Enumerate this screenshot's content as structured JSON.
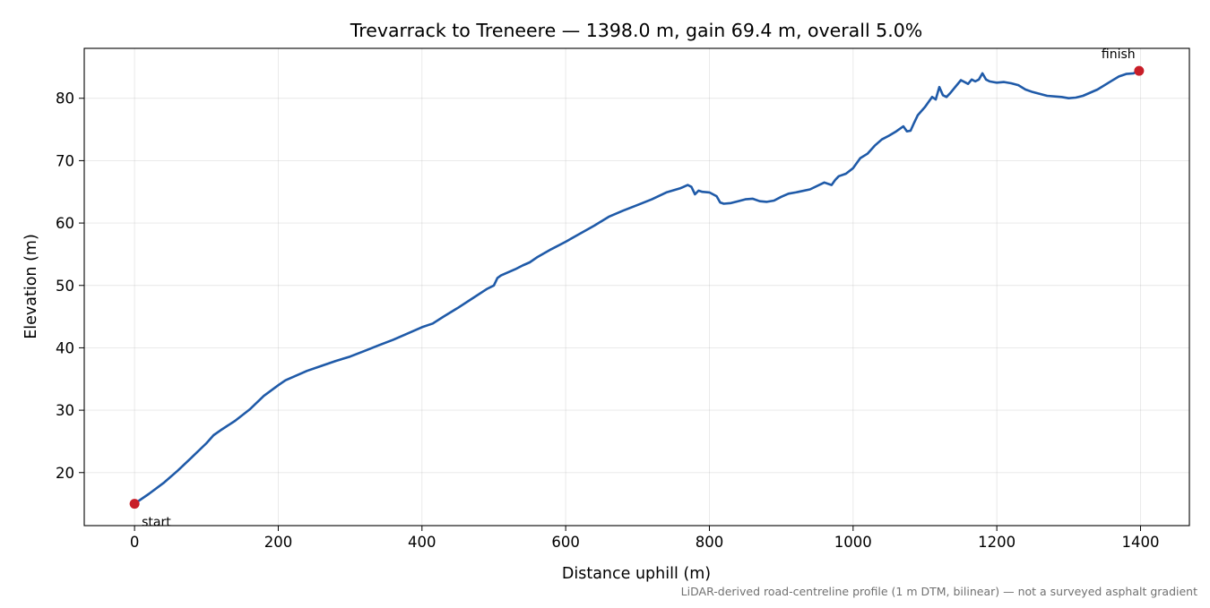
{
  "chart_data": {
    "type": "line",
    "title": "Trevarrack to Treneere — 1398.0 m, gain 69.4 m, overall 5.0%",
    "xlabel": "Distance uphill (m)",
    "ylabel": "Elevation (m)",
    "xlim": [
      -70,
      1468
    ],
    "ylim": [
      11.5,
      88
    ],
    "x_ticks": [
      0,
      200,
      400,
      600,
      800,
      1000,
      1200,
      1400
    ],
    "y_ticks": [
      20,
      30,
      40,
      50,
      60,
      70,
      80
    ],
    "x_tick_labels": [
      "0",
      "200",
      "400",
      "600",
      "800",
      "1000",
      "1200",
      "1400"
    ],
    "y_tick_labels": [
      "20",
      "30",
      "40",
      "50",
      "60",
      "70",
      "80"
    ],
    "grid": true,
    "series": [
      {
        "color": "#1f5aa8",
        "x": [
          0,
          20,
          40,
          60,
          80,
          100,
          110,
          120,
          140,
          160,
          180,
          200,
          210,
          220,
          240,
          260,
          280,
          300,
          320,
          340,
          360,
          380,
          400,
          415,
          430,
          450,
          470,
          490,
          500,
          505,
          510,
          520,
          530,
          540,
          550,
          560,
          580,
          600,
          620,
          640,
          660,
          680,
          700,
          720,
          740,
          760,
          770,
          775,
          780,
          785,
          790,
          800,
          810,
          815,
          820,
          830,
          840,
          850,
          860,
          870,
          880,
          890,
          900,
          910,
          920,
          940,
          960,
          970,
          975,
          980,
          990,
          1000,
          1010,
          1020,
          1030,
          1040,
          1050,
          1060,
          1070,
          1075,
          1080,
          1085,
          1090,
          1100,
          1110,
          1115,
          1120,
          1125,
          1130,
          1135,
          1140,
          1150,
          1160,
          1165,
          1170,
          1175,
          1180,
          1185,
          1190,
          1195,
          1200,
          1210,
          1220,
          1230,
          1240,
          1250,
          1270,
          1290,
          1300,
          1310,
          1320,
          1340,
          1360,
          1370,
          1380,
          1390,
          1398
        ],
        "y": [
          15.0,
          16.6,
          18.3,
          20.3,
          22.5,
          24.7,
          26.0,
          26.8,
          28.3,
          30.1,
          32.3,
          34.0,
          34.8,
          35.3,
          36.3,
          37.1,
          37.9,
          38.6,
          39.5,
          40.4,
          41.3,
          42.3,
          43.3,
          43.9,
          45.0,
          46.4,
          47.9,
          49.4,
          50.0,
          51.2,
          51.6,
          52.1,
          52.6,
          53.2,
          53.7,
          54.5,
          55.8,
          57.0,
          58.3,
          59.6,
          61.0,
          62.0,
          62.9,
          63.8,
          64.9,
          65.6,
          66.1,
          65.8,
          64.6,
          65.2,
          65.0,
          64.9,
          64.3,
          63.3,
          63.1,
          63.2,
          63.5,
          63.8,
          63.9,
          63.5,
          63.4,
          63.6,
          64.2,
          64.7,
          64.9,
          65.4,
          66.5,
          66.1,
          66.9,
          67.5,
          67.9,
          68.8,
          70.4,
          71.1,
          72.4,
          73.4,
          74.0,
          74.7,
          75.5,
          74.7,
          74.8,
          76.1,
          77.3,
          78.6,
          80.2,
          79.8,
          81.8,
          80.5,
          80.2,
          80.8,
          81.5,
          82.9,
          82.3,
          83.0,
          82.7,
          83.0,
          84.0,
          83.0,
          82.7,
          82.6,
          82.5,
          82.6,
          82.4,
          82.1,
          81.4,
          81.0,
          80.4,
          80.2,
          80.0,
          80.1,
          80.4,
          81.4,
          82.8,
          83.5,
          83.9,
          84.0,
          84.4
        ]
      }
    ],
    "markers": [
      {
        "x": 0,
        "y": 15.0,
        "label": "start",
        "color": "#c81e28"
      },
      {
        "x": 1398,
        "y": 84.4,
        "label": "finish",
        "color": "#c81e28"
      }
    ],
    "footnote": "LiDAR-derived road-centreline profile (1 m DTM, bilinear) — not a surveyed asphalt gradient"
  }
}
